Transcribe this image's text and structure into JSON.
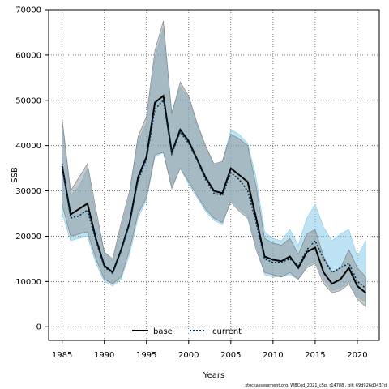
{
  "chart_data": {
    "type": "line",
    "title": "",
    "xlabel": "Years",
    "ylabel": "SSB",
    "xlim": [
      1983.5,
      1986.5
    ],
    "ylim": [
      -3000,
      70000
    ],
    "xticks": [
      1985,
      1990,
      1995,
      2000,
      2005,
      2010,
      2015,
      2020
    ],
    "yticks": [
      0,
      10000,
      20000,
      30000,
      40000,
      50000,
      60000,
      70000
    ],
    "grid": true,
    "legend_position": "bottom-left",
    "x": [
      1985,
      1986,
      1987,
      1988,
      1989,
      1990,
      1991,
      1992,
      1993,
      1994,
      1995,
      1996,
      1997,
      1998,
      1999,
      2000,
      2001,
      2002,
      2003,
      2004,
      2005,
      2006,
      2007,
      2008,
      2009,
      2010,
      2011,
      2012,
      2013,
      2014,
      2015,
      2016,
      2017,
      2018,
      2019,
      2020,
      2021
    ],
    "series": [
      {
        "name": "base",
        "color": "#000000",
        "band_color": "#8a8a8a",
        "values": [
          35500,
          24800,
          26000,
          27200,
          19500,
          13500,
          12000,
          17000,
          23000,
          33000,
          37500,
          49500,
          51000,
          38500,
          43500,
          41000,
          37000,
          33000,
          30000,
          29500,
          35000,
          33500,
          32000,
          24000,
          15500,
          14800,
          14500,
          15500,
          13000,
          16500,
          17500,
          12000,
          9500,
          10500,
          13000,
          9000,
          7500
        ],
        "lower": [
          27000,
          20000,
          20500,
          21000,
          15000,
          10500,
          9500,
          11000,
          17000,
          25000,
          28500,
          38000,
          38500,
          30500,
          35000,
          32000,
          29000,
          26000,
          24000,
          23000,
          27500,
          25500,
          24000,
          17000,
          12000,
          11500,
          11000,
          12000,
          10500,
          13000,
          14000,
          9500,
          7500,
          8000,
          9500,
          6000,
          4500
        ],
        "upper": [
          46000,
          30000,
          33000,
          36000,
          26000,
          16500,
          15000,
          23000,
          30000,
          42000,
          46500,
          61000,
          67500,
          47000,
          54000,
          51000,
          45000,
          40000,
          36000,
          36500,
          42500,
          41500,
          40000,
          31000,
          19500,
          18500,
          18000,
          19500,
          16000,
          20500,
          21500,
          15500,
          12000,
          13000,
          17000,
          13000,
          11000
        ]
      },
      {
        "name": "current",
        "color": "#003355",
        "band_color": "#87cbea",
        "values": [
          36000,
          24000,
          24500,
          25800,
          19000,
          13200,
          11800,
          16800,
          22800,
          32300,
          37000,
          48000,
          50000,
          38200,
          43000,
          40500,
          36800,
          32500,
          29500,
          29000,
          34000,
          32500,
          30000,
          23000,
          15000,
          14200,
          14300,
          15000,
          13500,
          17000,
          19000,
          15000,
          12000,
          13000,
          14000,
          10000,
          8500
        ],
        "lower": [
          25000,
          19000,
          19500,
          20000,
          14000,
          10000,
          9000,
          10500,
          16000,
          24000,
          28000,
          37500,
          38500,
          31000,
          35000,
          31500,
          28500,
          25500,
          23500,
          22500,
          28000,
          26000,
          24500,
          18000,
          11500,
          11000,
          11000,
          11500,
          10500,
          13500,
          14500,
          10500,
          8000,
          8500,
          10000,
          6500,
          5500
        ],
        "upper": [
          45000,
          29000,
          31000,
          35000,
          24500,
          16500,
          14500,
          22000,
          29000,
          41000,
          45000,
          59500,
          66000,
          47500,
          53000,
          50500,
          44500,
          40000,
          35500,
          36500,
          43500,
          42500,
          40500,
          33000,
          21000,
          19500,
          19000,
          21500,
          18000,
          24000,
          27000,
          22000,
          19000,
          20500,
          21500,
          15500,
          19000
        ]
      }
    ]
  },
  "footer_text": "stockassessment.org, WBCod_2021_c5p, r14788 , git: 69d926d0437d"
}
